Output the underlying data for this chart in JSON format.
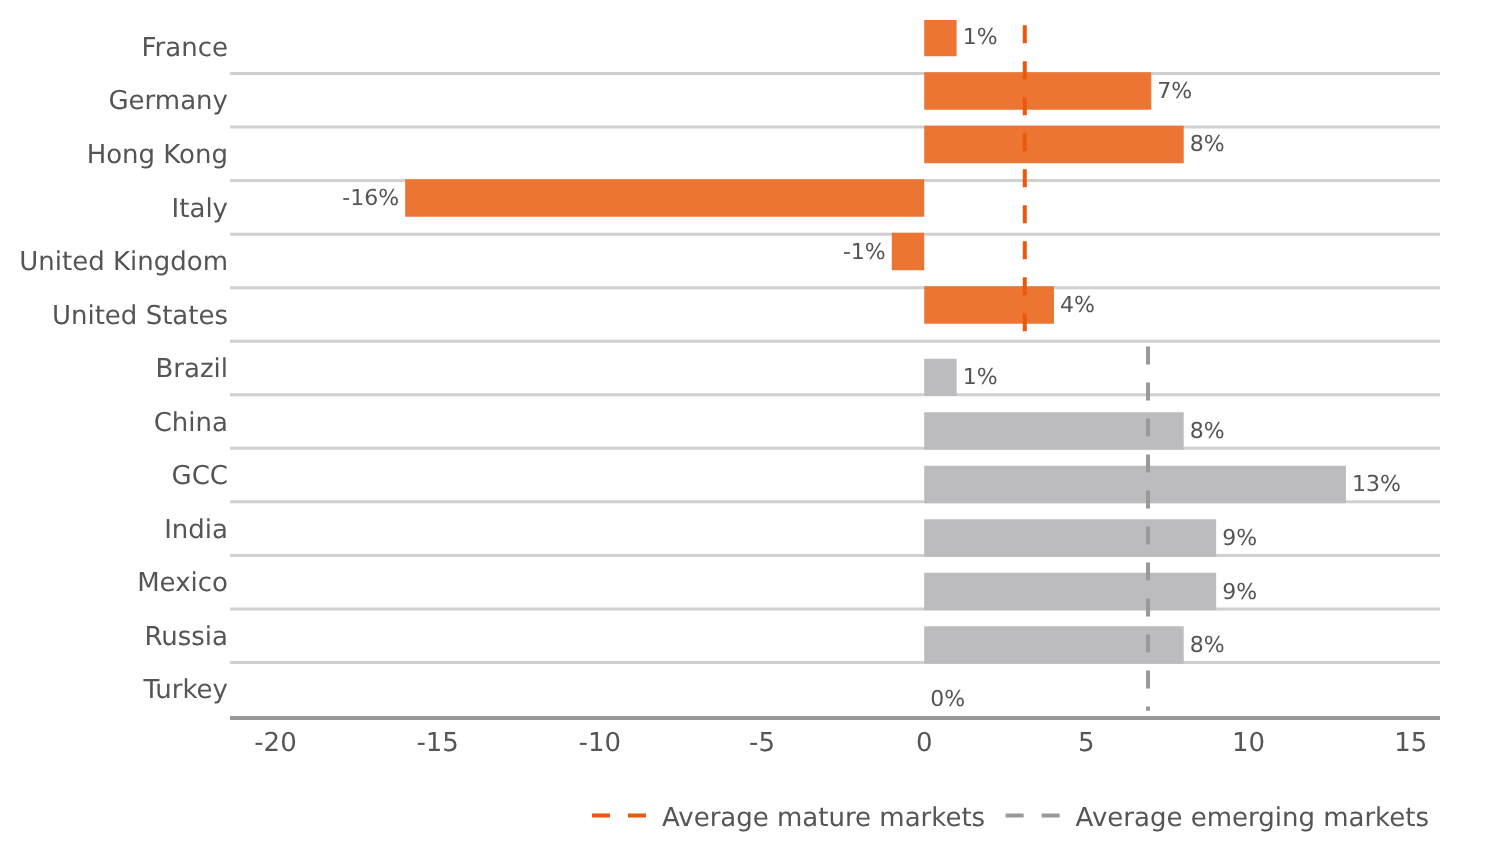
{
  "chart_data": {
    "type": "bar",
    "orientation": "horizontal",
    "categories": [
      "France",
      "Germany",
      "Hong Kong",
      "Italy",
      "United Kingdom",
      "United States",
      "Brazil",
      "China",
      "GCC",
      "India",
      "Mexico",
      "Russia",
      "Turkey"
    ],
    "series": [
      {
        "color": "#ed7533",
        "values": [
          1,
          7,
          8,
          -16,
          -1,
          4,
          null,
          null,
          null,
          null,
          null,
          null,
          null
        ],
        "value_labels": [
          "1%",
          "7%",
          "8%",
          "-16%",
          "-1%",
          "4%",
          null,
          null,
          null,
          null,
          null,
          null,
          null
        ]
      },
      {
        "color": "#bcbcbe",
        "values": [
          null,
          null,
          null,
          null,
          null,
          null,
          1,
          8,
          13,
          9,
          9,
          8,
          0
        ],
        "value_labels": [
          null,
          null,
          null,
          null,
          null,
          null,
          "1%",
          "8%",
          "13%",
          "9%",
          "9%",
          "8%",
          "0%"
        ]
      }
    ],
    "xlim": [
      -21.4,
      15.9
    ],
    "xticks": [
      -20,
      -15,
      -10,
      -5,
      0,
      5,
      10,
      15
    ],
    "ref_lines": [
      {
        "axis": "x",
        "value": 3.1,
        "label": "Average mature markets",
        "color": "#e8590c",
        "line_style": "dashed"
      },
      {
        "axis": "x",
        "value": 6.9,
        "label": "Average emerging markets",
        "color": "#999999",
        "line_style": "dashed"
      }
    ],
    "grid": "y",
    "legend": "bottom"
  }
}
